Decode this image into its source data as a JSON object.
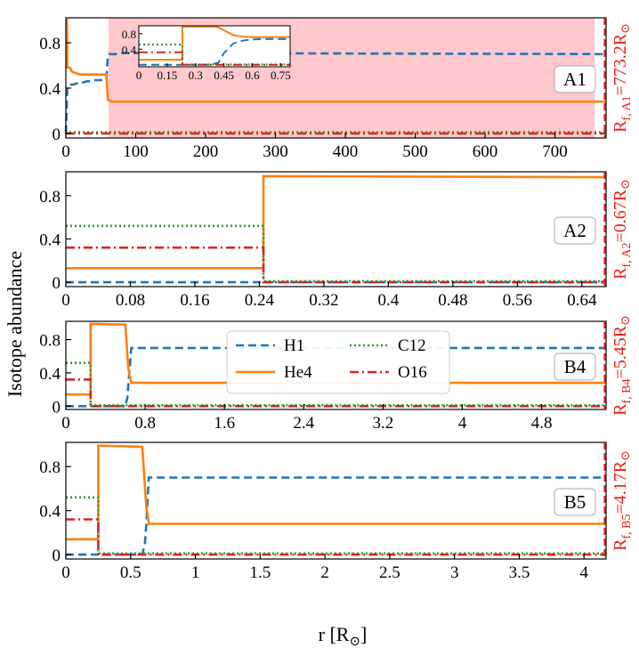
{
  "figure": {
    "ylabel": "Isotope abundance",
    "xlabel_main": "r [R",
    "xlabel_sub": "⊙",
    "xlabel_end": "]"
  },
  "legend": {
    "entries": [
      {
        "label": "H1",
        "key": "H1"
      },
      {
        "label": "He4",
        "key": "He4"
      },
      {
        "label": "C12",
        "key": "C12"
      },
      {
        "label": "O16",
        "key": "O16"
      }
    ]
  },
  "styles": {
    "H1": {
      "color": "#1f77b4",
      "dash": "9,5"
    },
    "He4": {
      "color": "#ff7f0e",
      "dash": ""
    },
    "C12": {
      "color": "#2ca02c",
      "dash": "2,3"
    },
    "O16": {
      "color": "#d62728",
      "dash": "10,4,2,4"
    },
    "radius_marker": "#e8201c",
    "shade": "#ffc8cc"
  },
  "chart_data": [
    {
      "type": "line",
      "panel_label": "A1",
      "xlim": [
        0,
        773.2
      ],
      "ylim": [
        -0.04,
        1.02
      ],
      "xticks": [
        0,
        100,
        200,
        300,
        400,
        500,
        600,
        700
      ],
      "xtick_labels": [
        "0",
        "100",
        "200",
        "300",
        "400",
        "500",
        "600",
        "700"
      ],
      "yticks": [
        0,
        0.4,
        0.8
      ],
      "ytick_labels": [
        "0",
        "0.4",
        "0.8"
      ],
      "radius_label": "R",
      "radius_sub": "f, A1",
      "radius_value": "=773.2R",
      "radius_sun": "⊙",
      "shaded_ranges": [
        [
          61,
          757
        ]
      ],
      "series": [
        {
          "name": "H1",
          "x": [
            0,
            2,
            4,
            6,
            10,
            15,
            20,
            25,
            30,
            35,
            40,
            45,
            50,
            55,
            58,
            60,
            62,
            66,
            70,
            73,
            80,
            773.2
          ],
          "y": [
            0,
            0.4,
            0.41,
            0.43,
            0.43,
            0.44,
            0.45,
            0.45,
            0.46,
            0.46,
            0.47,
            0.47,
            0.47,
            0.47,
            0.48,
            0.67,
            0.7,
            0.7,
            0.7,
            0.7,
            0.71,
            0.7
          ]
        },
        {
          "name": "He4",
          "x": [
            0,
            1.5,
            2,
            6,
            8,
            10,
            15,
            20,
            30,
            40,
            50,
            55,
            58,
            60,
            62,
            66,
            773.2
          ],
          "y": [
            1.0,
            1.0,
            0.58,
            0.58,
            0.55,
            0.54,
            0.53,
            0.52,
            0.52,
            0.52,
            0.52,
            0.52,
            0.52,
            0.3,
            0.29,
            0.28,
            0.28
          ]
        },
        {
          "name": "C12",
          "x": [
            0,
            1.5,
            2,
            773.2
          ],
          "y": [
            0.0,
            0.0,
            0.01,
            0.01
          ]
        },
        {
          "name": "O16",
          "x": [
            0,
            1.5,
            2,
            773.2
          ],
          "y": [
            0.0,
            0.0,
            0.0,
            0.0
          ]
        }
      ],
      "inset": {
        "xlim": [
          0,
          0.8
        ],
        "ylim": [
          -0.05,
          1.0
        ],
        "xticks": [
          0,
          0.15,
          0.3,
          0.45,
          0.6,
          0.75
        ],
        "xtick_labels": [
          "0",
          "0.15",
          "0.3",
          "0.45",
          "0.6",
          "0.75"
        ],
        "yticks": [
          0.4,
          0.8
        ],
        "ytick_labels": [
          "0.4",
          "0.8"
        ],
        "series": [
          {
            "name": "H1",
            "x": [
              0,
              0.37,
              0.42,
              0.45,
              0.5,
              0.55,
              0.6,
              0.65,
              0.8
            ],
            "y": [
              0,
              0,
              0.05,
              0.3,
              0.55,
              0.62,
              0.65,
              0.66,
              0.66
            ]
          },
          {
            "name": "He4",
            "x": [
              0,
              0.23,
              0.23,
              0.24,
              0.25,
              0.4,
              0.42,
              0.46,
              0.5,
              0.55,
              0.6,
              0.8
            ],
            "y": [
              0.13,
              0.13,
              0.97,
              0.97,
              0.98,
              0.98,
              0.96,
              0.86,
              0.76,
              0.72,
              0.71,
              0.71
            ]
          },
          {
            "name": "C12",
            "x": [
              0,
              0.23,
              0.23,
              0.8
            ],
            "y": [
              0.52,
              0.52,
              0.01,
              0.01
            ]
          },
          {
            "name": "O16",
            "x": [
              0,
              0.23,
              0.23,
              0.8
            ],
            "y": [
              0.32,
              0.32,
              0.0,
              0.0
            ]
          }
        ]
      }
    },
    {
      "type": "line",
      "panel_label": "A2",
      "xlim": [
        0,
        0.67
      ],
      "ylim": [
        -0.04,
        1.02
      ],
      "xticks": [
        0,
        0.08,
        0.16,
        0.24,
        0.32,
        0.4,
        0.48,
        0.56,
        0.64
      ],
      "xtick_labels": [
        "0",
        "0.08",
        "0.16",
        "0.24",
        "0.32",
        "0.4",
        "0.48",
        "0.56",
        "0.64"
      ],
      "yticks": [
        0,
        0.4,
        0.8
      ],
      "ytick_labels": [
        "0",
        "0.4",
        "0.8"
      ],
      "radius_label": "R",
      "radius_sub": "f, A2",
      "radius_value": "=0.67R",
      "radius_sun": "⊙",
      "series": [
        {
          "name": "H1",
          "x": [
            0,
            0.67
          ],
          "y": [
            0.0,
            0.0
          ]
        },
        {
          "name": "He4",
          "x": [
            0,
            0.245,
            0.245,
            0.67
          ],
          "y": [
            0.13,
            0.13,
            0.98,
            0.97
          ]
        },
        {
          "name": "C12",
          "x": [
            0,
            0.245,
            0.245,
            0.67
          ],
          "y": [
            0.52,
            0.52,
            0.01,
            0.01
          ]
        },
        {
          "name": "O16",
          "x": [
            0,
            0.245,
            0.245,
            0.67
          ],
          "y": [
            0.32,
            0.32,
            0.0,
            0.0
          ]
        }
      ]
    },
    {
      "type": "line",
      "panel_label": "B4",
      "xlim": [
        0,
        5.45
      ],
      "ylim": [
        -0.04,
        1.02
      ],
      "xticks": [
        0,
        0.8,
        1.6,
        2.4,
        3.2,
        4.0,
        4.8
      ],
      "xtick_labels": [
        "0",
        "0.8",
        "1.6",
        "2.4",
        "3.2",
        "4",
        "4.8"
      ],
      "yticks": [
        0,
        0.4,
        0.8
      ],
      "ytick_labels": [
        "0",
        "0.4",
        "0.8"
      ],
      "radius_label": "R",
      "radius_sub": "f, B4",
      "radius_value": "=5.45R",
      "radius_sun": "⊙",
      "series": [
        {
          "name": "H1",
          "x": [
            0,
            0.6,
            0.62,
            0.63,
            0.66,
            5.45
          ],
          "y": [
            0.0,
            0.0,
            0.1,
            0.25,
            0.7,
            0.7
          ]
        },
        {
          "name": "He4",
          "x": [
            0,
            0.25,
            0.25,
            0.6,
            0.63,
            0.66,
            5.45
          ],
          "y": [
            0.14,
            0.14,
            0.99,
            0.98,
            0.45,
            0.28,
            0.28
          ]
        },
        {
          "name": "C12",
          "x": [
            0,
            0.25,
            0.25,
            5.45
          ],
          "y": [
            0.52,
            0.52,
            0.01,
            0.01
          ]
        },
        {
          "name": "O16",
          "x": [
            0,
            0.25,
            0.25,
            5.45
          ],
          "y": [
            0.32,
            0.32,
            0.0,
            0.0
          ]
        }
      ]
    },
    {
      "type": "line",
      "panel_label": "B5",
      "xlim": [
        0,
        4.17
      ],
      "ylim": [
        -0.04,
        1.02
      ],
      "xticks": [
        0,
        0.5,
        1.0,
        1.5,
        2.0,
        2.5,
        3.0,
        3.5,
        4.0
      ],
      "xtick_labels": [
        "0",
        "0.5",
        "1",
        "1.5",
        "2",
        "2.5",
        "3",
        "3.5",
        "4"
      ],
      "yticks": [
        0,
        0.4,
        0.8
      ],
      "ytick_labels": [
        "0",
        "0.4",
        "0.8"
      ],
      "radius_label": "R",
      "radius_sub": "f, B5",
      "radius_value": "=4.17R",
      "radius_sun": "⊙",
      "series": [
        {
          "name": "H1",
          "x": [
            0,
            0.59,
            0.61,
            0.62,
            0.64,
            4.17
          ],
          "y": [
            0.0,
            0.0,
            0.1,
            0.25,
            0.7,
            0.7
          ]
        },
        {
          "name": "He4",
          "x": [
            0,
            0.25,
            0.25,
            0.59,
            0.62,
            0.64,
            4.17
          ],
          "y": [
            0.14,
            0.14,
            0.99,
            0.98,
            0.45,
            0.28,
            0.28
          ]
        },
        {
          "name": "C12",
          "x": [
            0,
            0.25,
            0.25,
            4.17
          ],
          "y": [
            0.52,
            0.52,
            0.01,
            0.01
          ]
        },
        {
          "name": "O16",
          "x": [
            0,
            0.25,
            0.25,
            4.17
          ],
          "y": [
            0.32,
            0.32,
            0.0,
            0.0
          ]
        }
      ]
    }
  ]
}
